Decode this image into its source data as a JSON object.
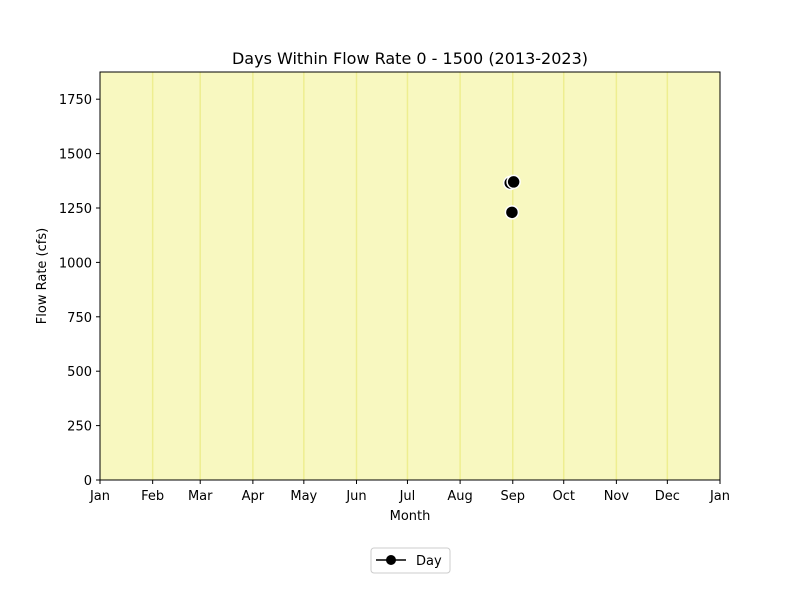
{
  "chart_data": {
    "type": "scatter",
    "title": "Days Within Flow Rate 0 - 1500 (2013-2023)",
    "xlabel": "Month",
    "ylabel": "Flow Rate (cfs)",
    "x_ticks": [
      "Jan",
      "Feb",
      "Mar",
      "Apr",
      "May",
      "Jun",
      "Jul",
      "Aug",
      "Sep",
      "Oct",
      "Nov",
      "Dec",
      "Jan"
    ],
    "x_tick_days": [
      0,
      31,
      59,
      90,
      120,
      151,
      181,
      212,
      243,
      273,
      304,
      334,
      365
    ],
    "xlim": [
      0,
      365
    ],
    "ylim": [
      0,
      1875
    ],
    "y_ticks": [
      0,
      250,
      500,
      750,
      1000,
      1250,
      1500,
      1750
    ],
    "grid": "vertical at month ticks",
    "background_color": "#f8f8c0",
    "grid_color": "#eeee90",
    "marker_color": "#000000",
    "marker_edge_color": "#ffffff",
    "legend_position": "below plot, centered",
    "series": [
      {
        "name": "Day",
        "points": [
          {
            "x": 241.5,
            "y": 1365
          },
          {
            "x": 243.5,
            "y": 1370
          },
          {
            "x": 242.5,
            "y": 1230
          }
        ]
      }
    ]
  }
}
